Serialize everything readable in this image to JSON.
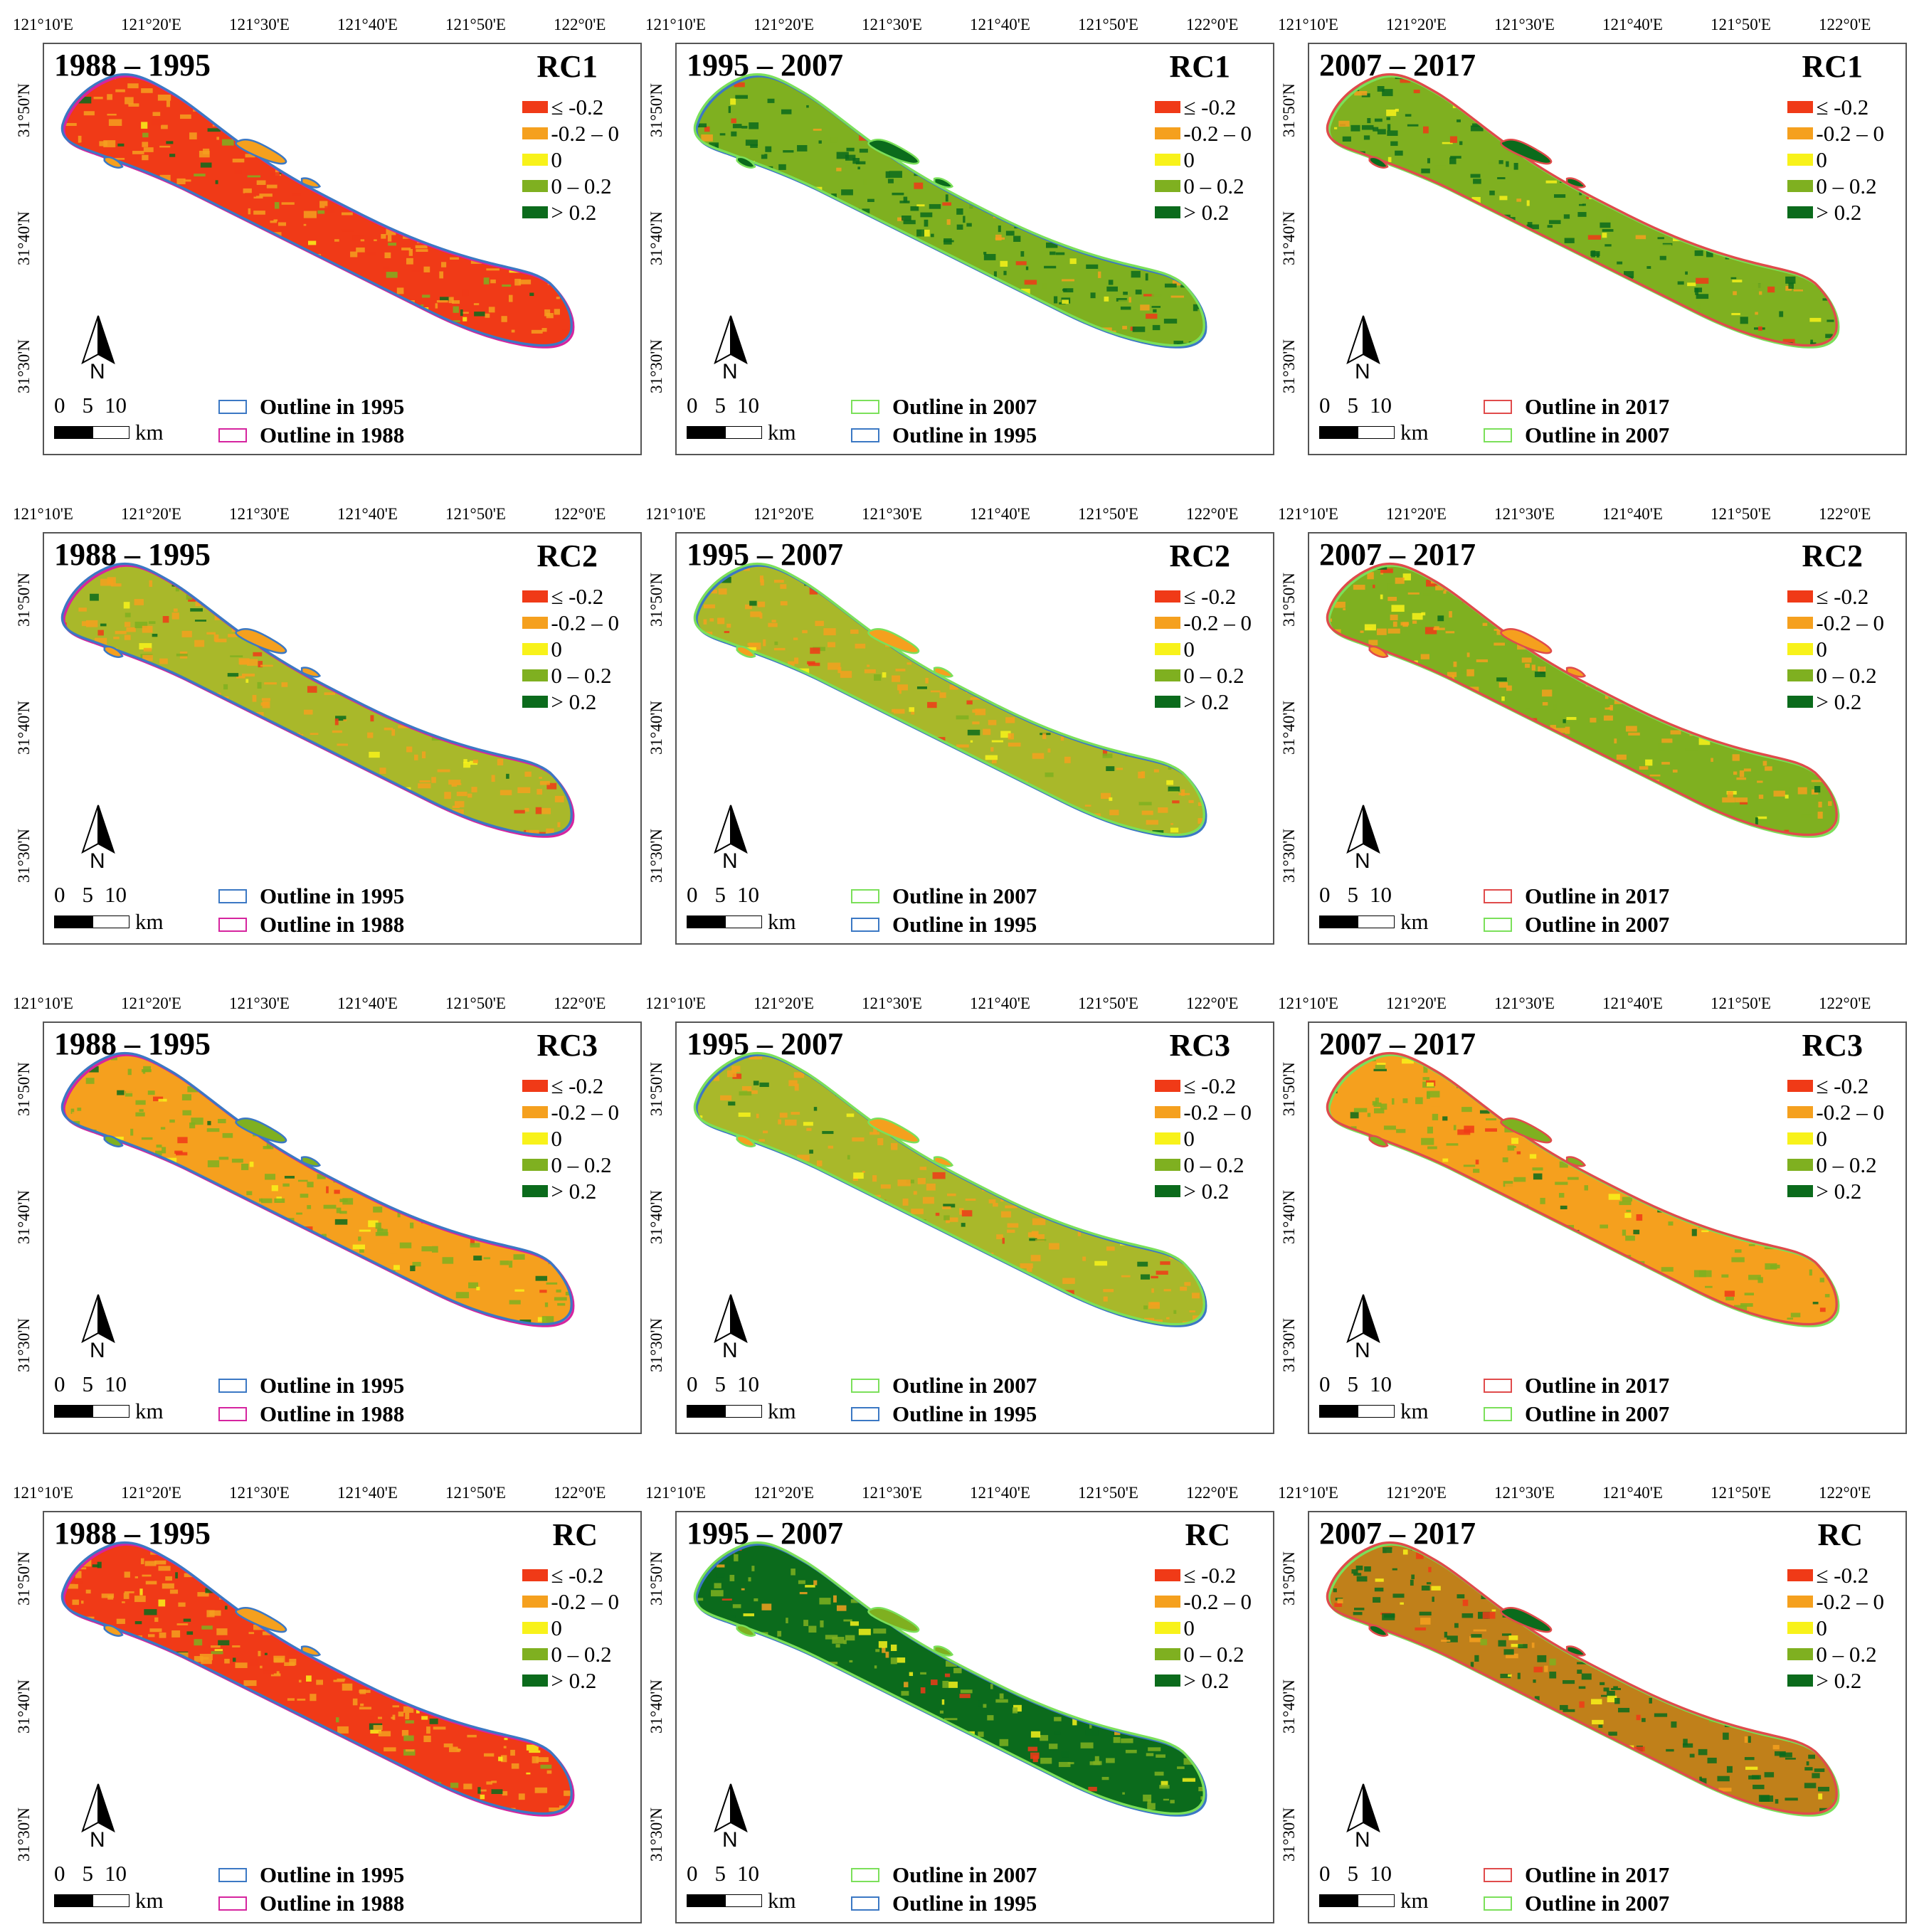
{
  "figure": {
    "lon_ticks": [
      "121°10'E",
      "121°20'E",
      "121°30'E",
      "121°40'E",
      "121°50'E",
      "122°0'E"
    ],
    "lat_ticks": [
      "31°50'N",
      "31°40'N",
      "31°30'N"
    ],
    "legend_classes": [
      {
        "label": "≤ -0.2",
        "color": "#f03a17"
      },
      {
        "label": "-0.2 – 0",
        "color": "#f5a01e"
      },
      {
        "label": "0",
        "color": "#f8f21a"
      },
      {
        "label": "0 – 0.2",
        "color": "#7fb020"
      },
      {
        "label": "> 0.2",
        "color": "#0b6b1c"
      }
    ],
    "north_label": "N",
    "scale": {
      "ticks": [
        "0",
        "5",
        "10"
      ],
      "unit": "km"
    }
  },
  "rows": [
    {
      "component": "RC1",
      "panels": [
        {
          "period": "1988 – 1995",
          "outline_new": {
            "label": "Outline in 1995",
            "color": "#3b78c4"
          },
          "outline_old": {
            "label": "Outline in 1988",
            "color": "#d6249f"
          },
          "dominant_color": "#f03a17",
          "secondary_color": "#f5a01e"
        },
        {
          "period": "1995 – 2007",
          "outline_new": {
            "label": "Outline in 2007",
            "color": "#7be05a"
          },
          "outline_old": {
            "label": "Outline in 1995",
            "color": "#3b78c4"
          },
          "dominant_color": "#7fb020",
          "secondary_color": "#0b6b1c"
        },
        {
          "period": "2007 – 2017",
          "outline_new": {
            "label": "Outline in 2017",
            "color": "#e04b4b"
          },
          "outline_old": {
            "label": "Outline in 2007",
            "color": "#7be05a"
          },
          "dominant_color": "#7fb020",
          "secondary_color": "#0b6b1c"
        }
      ]
    },
    {
      "component": "RC2",
      "panels": [
        {
          "period": "1988 – 1995",
          "outline_new": {
            "label": "Outline in 1995",
            "color": "#3b78c4"
          },
          "outline_old": {
            "label": "Outline in 1988",
            "color": "#d6249f"
          },
          "dominant_color": "#a9b82a",
          "secondary_color": "#f5a01e"
        },
        {
          "period": "1995 – 2007",
          "outline_new": {
            "label": "Outline in 2007",
            "color": "#7be05a"
          },
          "outline_old": {
            "label": "Outline in 1995",
            "color": "#3b78c4"
          },
          "dominant_color": "#a9b82a",
          "secondary_color": "#f5a01e"
        },
        {
          "period": "2007 – 2017",
          "outline_new": {
            "label": "Outline in 2017",
            "color": "#e04b4b"
          },
          "outline_old": {
            "label": "Outline in 2007",
            "color": "#7be05a"
          },
          "dominant_color": "#7fb020",
          "secondary_color": "#f5a01e"
        }
      ]
    },
    {
      "component": "RC3",
      "panels": [
        {
          "period": "1988 – 1995",
          "outline_new": {
            "label": "Outline in 1995",
            "color": "#3b78c4"
          },
          "outline_old": {
            "label": "Outline in 1988",
            "color": "#d6249f"
          },
          "dominant_color": "#f5a01e",
          "secondary_color": "#7fb020"
        },
        {
          "period": "1995 – 2007",
          "outline_new": {
            "label": "Outline in 2007",
            "color": "#7be05a"
          },
          "outline_old": {
            "label": "Outline in 1995",
            "color": "#3b78c4"
          },
          "dominant_color": "#a9b82a",
          "secondary_color": "#f5a01e"
        },
        {
          "period": "2007 – 2017",
          "outline_new": {
            "label": "Outline in 2017",
            "color": "#e04b4b"
          },
          "outline_old": {
            "label": "Outline in 2007",
            "color": "#7be05a"
          },
          "dominant_color": "#f5a01e",
          "secondary_color": "#7fb020"
        }
      ]
    },
    {
      "component": "RC",
      "panels": [
        {
          "period": "1988 – 1995",
          "outline_new": {
            "label": "Outline in 1995",
            "color": "#3b78c4"
          },
          "outline_old": {
            "label": "Outline in 1988",
            "color": "#d6249f"
          },
          "dominant_color": "#f03a17",
          "secondary_color": "#f5a01e"
        },
        {
          "period": "1995 – 2007",
          "outline_new": {
            "label": "Outline in 2007",
            "color": "#7be05a"
          },
          "outline_old": {
            "label": "Outline in 1995",
            "color": "#3b78c4"
          },
          "dominant_color": "#0b6b1c",
          "secondary_color": "#7fb020"
        },
        {
          "period": "2007 – 2017",
          "outline_new": {
            "label": "Outline in 2017",
            "color": "#e04b4b"
          },
          "outline_old": {
            "label": "Outline in 2007",
            "color": "#7be05a"
          },
          "dominant_color": "#c0801a",
          "secondary_color": "#0b6b1c"
        }
      ]
    }
  ]
}
